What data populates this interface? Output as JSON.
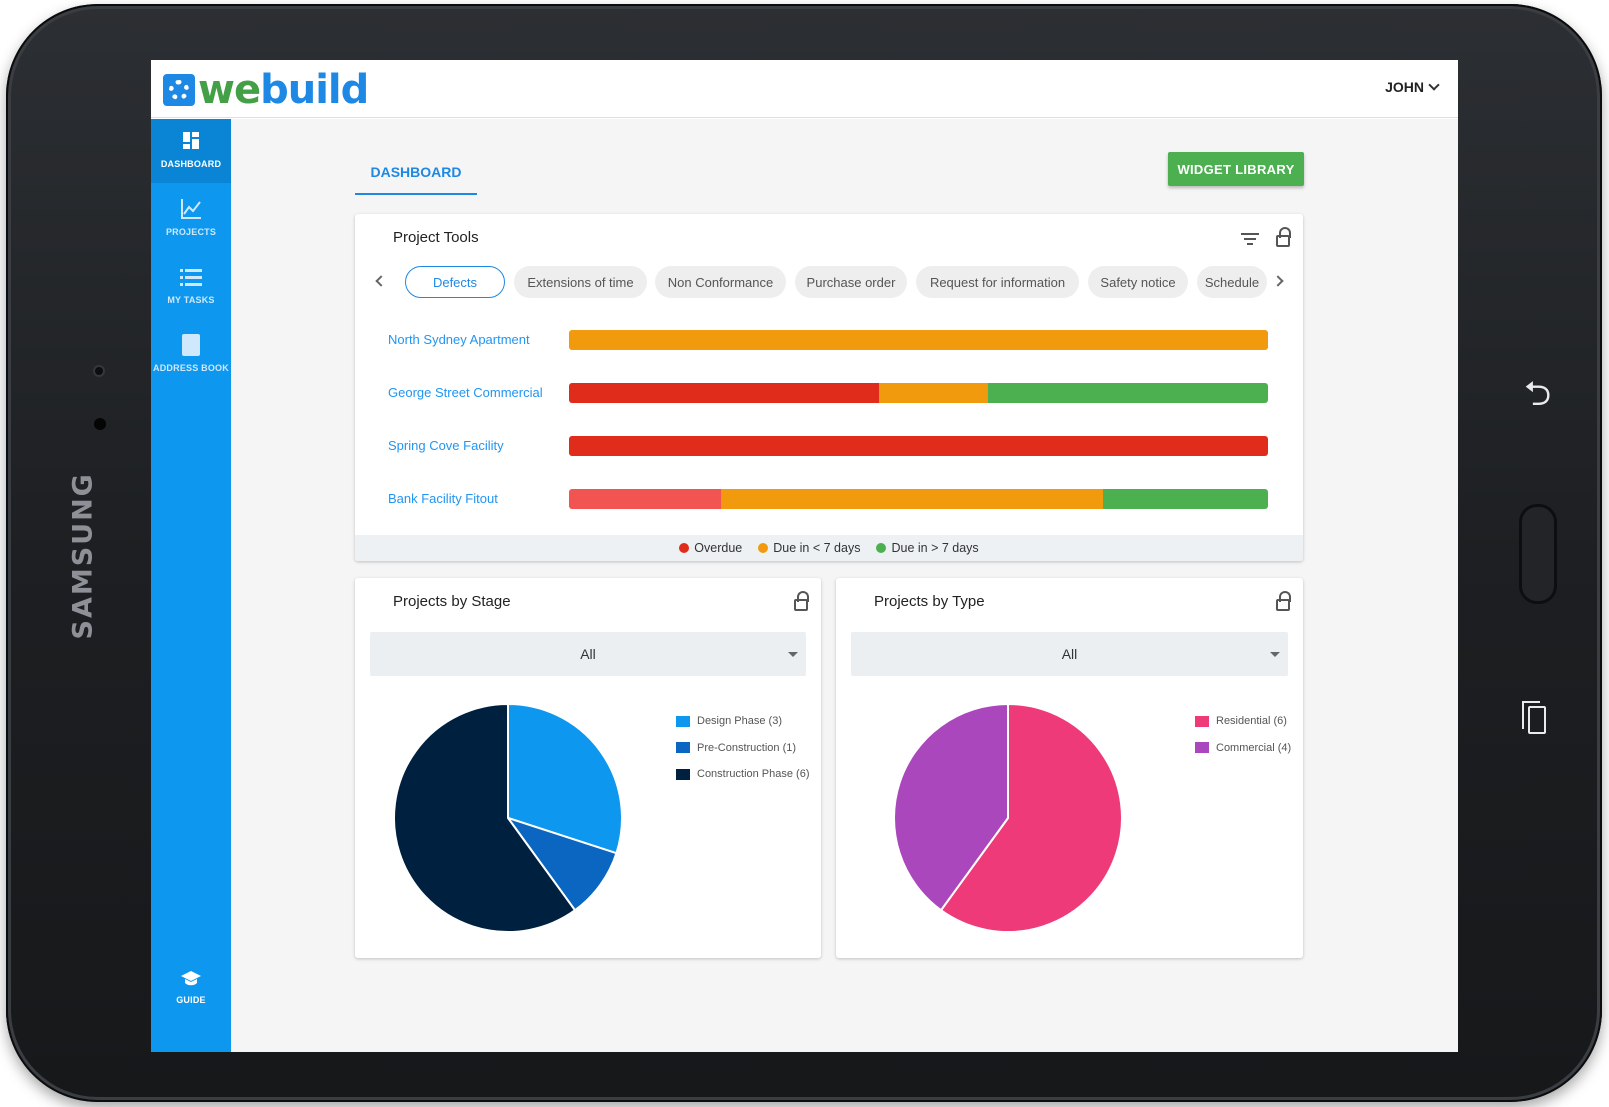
{
  "device": {
    "brand": "SAMSUNG"
  },
  "header": {
    "logo_prefix": "we",
    "logo_suffix": "build",
    "user": "JOHN"
  },
  "sidebar": {
    "items": [
      {
        "label": "DASHBOARD",
        "icon": "dashboard-icon"
      },
      {
        "label": "PROJECTS",
        "icon": "chart-line-icon"
      },
      {
        "label": "MY TASKS",
        "icon": "list-icon"
      },
      {
        "label": "ADDRESS BOOK",
        "icon": "book-icon"
      }
    ],
    "guide_label": "GUIDE"
  },
  "main": {
    "tab_label": "DASHBOARD",
    "widget_library_label": "WIDGET LIBRARY"
  },
  "project_tools": {
    "title": "Project Tools",
    "chips": [
      "Defects",
      "Extensions of time",
      "Non Conformance",
      "Purchase order",
      "Request for information",
      "Safety notice",
      "Schedule"
    ],
    "selected_chip": "Defects",
    "projects": [
      {
        "name": "North Sydney Apartment",
        "segments": [
          {
            "status": "due_soon",
            "fraction": 1.0
          }
        ]
      },
      {
        "name": "George Street Commercial",
        "segments": [
          {
            "status": "overdue",
            "fraction": 0.444
          },
          {
            "status": "due_soon",
            "fraction": 0.155
          },
          {
            "status": "due_later",
            "fraction": 0.401
          }
        ]
      },
      {
        "name": "Spring Cove Facility",
        "segments": [
          {
            "status": "overdue",
            "fraction": 1.0
          }
        ]
      },
      {
        "name": "Bank Facility Fitout",
        "segments": [
          {
            "status": "overdue_light",
            "fraction": 0.217
          },
          {
            "status": "due_soon",
            "fraction": 0.547
          },
          {
            "status": "due_later",
            "fraction": 0.236
          }
        ]
      }
    ],
    "legend": [
      {
        "label": "Overdue",
        "color": "#e02c1a"
      },
      {
        "label": "Due in < 7 days",
        "color": "#f29a0e"
      },
      {
        "label": "Due in > 7 days",
        "color": "#4caf50"
      }
    ],
    "colors": {
      "overdue": "#e02c1a",
      "overdue_light": "#f25452",
      "due_soon": "#f29a0e",
      "due_later": "#4caf50"
    }
  },
  "by_stage": {
    "title": "Projects by Stage",
    "filter_value": "All",
    "legend": [
      "Design Phase (3)",
      "Pre-Construction (1)",
      "Construction Phase (6)"
    ]
  },
  "by_type": {
    "title": "Projects by Type",
    "filter_value": "All",
    "legend": [
      "Residential (6)",
      "Commercial (4)"
    ]
  },
  "chart_data": [
    {
      "type": "pie",
      "title": "Projects by Stage",
      "categories": [
        "Design Phase",
        "Pre-Construction",
        "Construction Phase"
      ],
      "values": [
        3,
        1,
        6
      ],
      "colors": [
        "#0d97ee",
        "#0a66c0",
        "#00203f"
      ]
    },
    {
      "type": "pie",
      "title": "Projects by Type",
      "categories": [
        "Residential",
        "Commercial"
      ],
      "values": [
        6,
        4
      ],
      "colors": [
        "#ef3a79",
        "#ab47bc"
      ]
    }
  ]
}
